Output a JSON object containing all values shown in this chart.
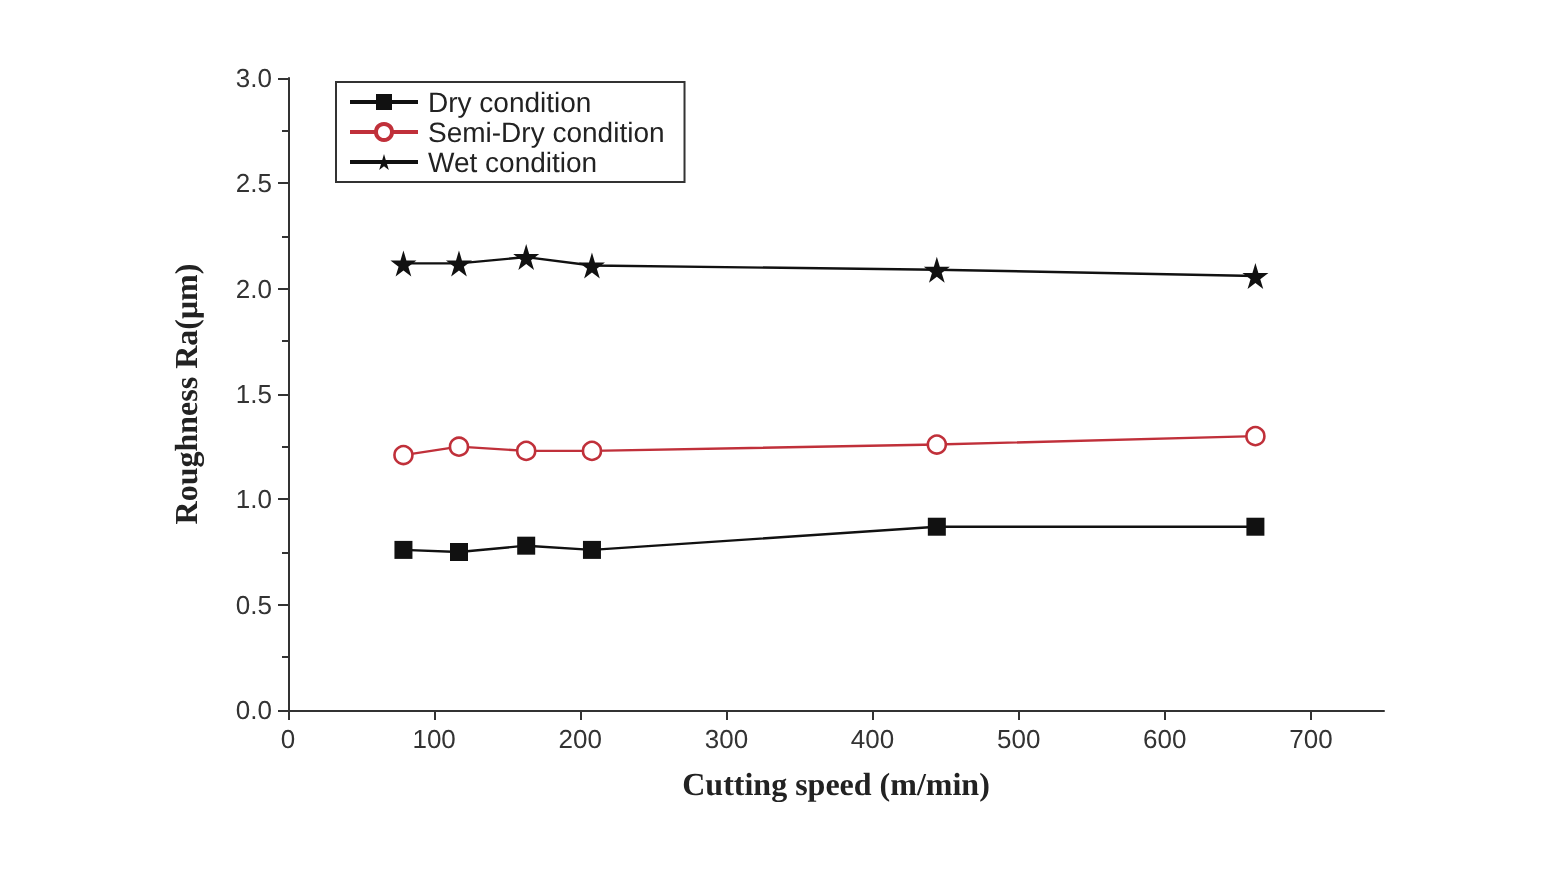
{
  "chart_data": {
    "type": "line",
    "xlabel": "Cutting speed (m/min)",
    "ylabel": "Roughness Ra(μm)",
    "x": [
      79,
      117,
      163,
      208,
      444,
      662
    ],
    "series": [
      {
        "name": "Dry condition",
        "color": "#111111",
        "marker": "square",
        "values": [
          0.76,
          0.75,
          0.78,
          0.76,
          0.87,
          0.87
        ]
      },
      {
        "name": "Semi-Dry condition",
        "color": "#c0303a",
        "marker": "circle",
        "values": [
          1.21,
          1.25,
          1.23,
          1.23,
          1.26,
          1.3
        ]
      },
      {
        "name": "Wet condition",
        "color": "#111111",
        "marker": "star",
        "values": [
          2.12,
          2.12,
          2.15,
          2.11,
          2.09,
          2.06
        ]
      }
    ],
    "xlim": [
      0,
      750
    ],
    "xticks": [
      0,
      100,
      200,
      300,
      400,
      500,
      600,
      700
    ],
    "ylim": [
      0,
      3
    ],
    "yticks": [
      {
        "value": 0,
        "label": "0.0"
      },
      0.5,
      {
        "value": 1,
        "label": "1.0"
      },
      1.5,
      {
        "value": 2,
        "label": "2.0"
      },
      2.5,
      {
        "value": 3,
        "label": "3.0"
      }
    ],
    "grid": false,
    "legend": "top left",
    "line_style": "solid"
  }
}
